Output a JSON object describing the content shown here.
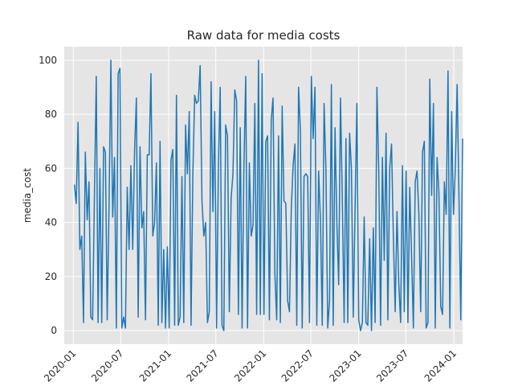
{
  "chart_data": {
    "type": "line",
    "title": "Raw data for media costs",
    "xlabel": "",
    "ylabel": "media_cost",
    "grid": true,
    "legend": "none",
    "xlim": [
      "2019-11-27",
      "2024-02-04"
    ],
    "ylim": [
      -5,
      105
    ],
    "x_ticks": [
      "2020-01",
      "2020-07",
      "2021-01",
      "2021-07",
      "2022-01",
      "2022-07",
      "2023-01",
      "2023-07",
      "2024-01"
    ],
    "y_ticks": [
      0,
      20,
      40,
      60,
      80,
      100
    ],
    "colors": {
      "background": "#e5e5e5",
      "line": "#1f77b4",
      "grid": "#ffffff"
    },
    "start_date": "2020-01-05",
    "series": [
      {
        "values": [
          54,
          47,
          77,
          30,
          35,
          3,
          66,
          41,
          55,
          5,
          4,
          50,
          94,
          3,
          60,
          3,
          68,
          66,
          4,
          46,
          100,
          42,
          64,
          1,
          95,
          97,
          1,
          5,
          1,
          53,
          30,
          61,
          30,
          66,
          86,
          5,
          68,
          38,
          44,
          4,
          65,
          65,
          95,
          35,
          40,
          62,
          2,
          70,
          3,
          30,
          1,
          31,
          1,
          63,
          67,
          2,
          87,
          2,
          5,
          57,
          3,
          76,
          58,
          81,
          2,
          58,
          87,
          84,
          85,
          98,
          48,
          35,
          40,
          3,
          7,
          92,
          44,
          81,
          1,
          60,
          90,
          2,
          0,
          76,
          72,
          7,
          49,
          58,
          89,
          85,
          6,
          75,
          1,
          60,
          94,
          1,
          62,
          35,
          39,
          84,
          6,
          100,
          6,
          95,
          6,
          70,
          72,
          4,
          78,
          86,
          21,
          4,
          72,
          3,
          83,
          48,
          47,
          11,
          7,
          45,
          61,
          69,
          2,
          90,
          74,
          1,
          57,
          58,
          57,
          3,
          94,
          71,
          90,
          2,
          59,
          41,
          2,
          84,
          60,
          1,
          11,
          91,
          2,
          75,
          40,
          17,
          86,
          49,
          3,
          71,
          3,
          73,
          60,
          5,
          45,
          84,
          4,
          0,
          3,
          42,
          3,
          2,
          34,
          0,
          38,
          3,
          90,
          59,
          2,
          64,
          26,
          73,
          4,
          60,
          69,
          35,
          7,
          44,
          17,
          3,
          61,
          7,
          59,
          3,
          53,
          28,
          1,
          55,
          59,
          43,
          7,
          66,
          70,
          1,
          3,
          93,
          50,
          84,
          1,
          64,
          51,
          9,
          6,
          55,
          43,
          96,
          1,
          81,
          43,
          60,
          91,
          50,
          4,
          71,
          87,
          35,
          2,
          60,
          73,
          85,
          46,
          82,
          2,
          50,
          0,
          2,
          73,
          80,
          3,
          1,
          4,
          3,
          32,
          6,
          57,
          51,
          59,
          13,
          84,
          5,
          58,
          57,
          65,
          43,
          1,
          58,
          31,
          2,
          9,
          83,
          43,
          36,
          88,
          78,
          10,
          4,
          61,
          88,
          80,
          41,
          66,
          50,
          2,
          55,
          6,
          47,
          92,
          70,
          90,
          0,
          60,
          60,
          50,
          75,
          4,
          61,
          59,
          9,
          5,
          4,
          4,
          13,
          20,
          77,
          35,
          12,
          69,
          74,
          14,
          92,
          55,
          10,
          89,
          69,
          18,
          83,
          64,
          51,
          48,
          0,
          62,
          33,
          91,
          6,
          37,
          69,
          7,
          64,
          57,
          13,
          68,
          35,
          15,
          94,
          48,
          68,
          57,
          32,
          12,
          56,
          61,
          48,
          0,
          55,
          64,
          2,
          37,
          46,
          83,
          40,
          56,
          52,
          21,
          88,
          50,
          45,
          12,
          76,
          45,
          33,
          73,
          28,
          36,
          58,
          15,
          78,
          41,
          64,
          83,
          42,
          51,
          22,
          80,
          46,
          63,
          55,
          21,
          61,
          39,
          76,
          1,
          66,
          29,
          47,
          7,
          60,
          2,
          38,
          69,
          11,
          33,
          4,
          67,
          45,
          29,
          25,
          67,
          13,
          56,
          31,
          85,
          42,
          17,
          88,
          68,
          24,
          27,
          52,
          9,
          50,
          83,
          41,
          62,
          10,
          16,
          71,
          56,
          3,
          48,
          92,
          15,
          58,
          43,
          28,
          76,
          54,
          42,
          8,
          24,
          63,
          30,
          17,
          58,
          95,
          14,
          46,
          65,
          36,
          92,
          44,
          25,
          48,
          50,
          80,
          69,
          43,
          8,
          14,
          46,
          76,
          0,
          51,
          5,
          24,
          88,
          34,
          44,
          55,
          80,
          9,
          51,
          28,
          62,
          74,
          51,
          71,
          36,
          26,
          13,
          3,
          43,
          94,
          47,
          69,
          60,
          11,
          34,
          57,
          73,
          63,
          57,
          25,
          70,
          72,
          3,
          50,
          63,
          70,
          15,
          1,
          50,
          86,
          39,
          71,
          4,
          68,
          61,
          42,
          87,
          35,
          59,
          68,
          9,
          25,
          42,
          72,
          78,
          77,
          48,
          24,
          66,
          6,
          32,
          46,
          53,
          55,
          83,
          60,
          75,
          7,
          11,
          93,
          39,
          39,
          63,
          44,
          72,
          11,
          82,
          9,
          33,
          56,
          68,
          47,
          49,
          91,
          79,
          42,
          34,
          36,
          20,
          27,
          46,
          23,
          48,
          72,
          2,
          70,
          58,
          54,
          62,
          23,
          15,
          5,
          61,
          54,
          46,
          2,
          62,
          39,
          43,
          64,
          25,
          28,
          85,
          48,
          43,
          44,
          65,
          5,
          3,
          84,
          52,
          61,
          46,
          60,
          29,
          72,
          46,
          70,
          23,
          37,
          36,
          57,
          46,
          25,
          40,
          81,
          41,
          27,
          45,
          8,
          52,
          63,
          60,
          49,
          86,
          59,
          38,
          13,
          64,
          29,
          81,
          37,
          57,
          59,
          53,
          50,
          23,
          24,
          65,
          47,
          50,
          53,
          70,
          4,
          37,
          47,
          62,
          77,
          36,
          33,
          14,
          37,
          58,
          36,
          28,
          11,
          67,
          13,
          52,
          31,
          45,
          55,
          79,
          90,
          70,
          14,
          35,
          51,
          81,
          59,
          34,
          20,
          87,
          67,
          56,
          7,
          85,
          40,
          79,
          64,
          47,
          66,
          28,
          17,
          55,
          42,
          39,
          75,
          2,
          46,
          3,
          17,
          19,
          90,
          63,
          44,
          52,
          50,
          15,
          69,
          45,
          39,
          2,
          83,
          57,
          9,
          49,
          35,
          64,
          52,
          45,
          31,
          81,
          41,
          38,
          69,
          33,
          53,
          65,
          72,
          19,
          56,
          87,
          18,
          55,
          45,
          5,
          43,
          70,
          51,
          40,
          44,
          33,
          33,
          36,
          50,
          74,
          47,
          42,
          44,
          46,
          25,
          30,
          72,
          43,
          55,
          4,
          66,
          26,
          18,
          38,
          63,
          63,
          31,
          39
        ]
      }
    ]
  }
}
